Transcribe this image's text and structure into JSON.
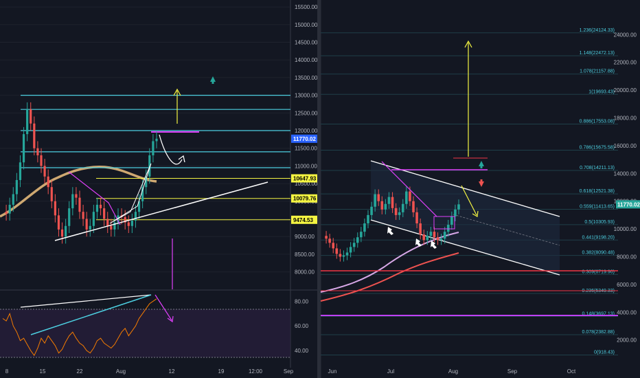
{
  "charts": [
    {
      "type": "line",
      "title": "",
      "x_ticks": [
        "8",
        "15",
        "22",
        "Aug",
        "12",
        "19",
        "12:00",
        "Sep"
      ],
      "y_ticks": [
        "15500.00",
        "15000.00",
        "14500.00",
        "14000.00",
        "13500.00",
        "13000.00",
        "12500.00",
        "12000.00",
        "11500.00",
        "11000.00",
        "10500.00",
        "10000.00",
        "9500.00",
        "9000.00",
        "8500.00",
        "8000.00"
      ],
      "ylim": [
        7700,
        15600
      ],
      "price_tag": "11770.02",
      "level_tags": [
        "10647.93",
        "10079.76",
        "9474.53"
      ],
      "level_values": [
        10647.93,
        10079.76,
        9474.53
      ],
      "cyan_levels": [
        13000,
        12600,
        12000,
        11400,
        10950
      ],
      "price_series": [
        9700,
        9650,
        9900,
        10200,
        10600,
        11100,
        11900,
        12600,
        12200,
        11500,
        11300,
        11000,
        10700,
        10400,
        10000,
        9600,
        9200,
        9000,
        9300,
        9800,
        10200,
        10100,
        9700,
        9500,
        9200,
        9300,
        9700,
        9900,
        9800,
        9500,
        9300,
        9200,
        9400,
        9600,
        9550,
        9400,
        9300,
        9450,
        9700,
        10000,
        10400,
        10700,
        11300,
        11700,
        11770
      ]
    },
    {
      "type": "line",
      "title": "",
      "y_ticks": [
        "80.00",
        "60.00",
        "40.00"
      ],
      "ylim": [
        30,
        88
      ],
      "rsi_series": [
        66,
        64,
        70,
        60,
        55,
        48,
        50,
        45,
        40,
        36,
        42,
        50,
        46,
        52,
        48,
        44,
        38,
        41,
        47,
        52,
        55,
        50,
        46,
        44,
        40,
        38,
        42,
        48,
        50,
        46,
        44,
        42,
        45,
        50,
        55,
        58,
        52,
        56,
        60,
        66,
        70,
        74,
        78,
        80,
        82
      ]
    },
    {
      "type": "line",
      "title": "",
      "x_ticks": [
        "Jun",
        "Jul",
        "Aug",
        "Sep",
        "Oct"
      ],
      "y_ticks": [
        "24000.00",
        "22000.00",
        "20000.00",
        "18000.00",
        "16000.00",
        "14000.00",
        "12000.00",
        "10000.00",
        "8000.00",
        "6000.00",
        "4000.00",
        "2000.00"
      ],
      "ylim": [
        500,
        25500
      ],
      "price_tag": "11770.02",
      "fib_labels": [
        "1.236(24124.33)",
        "1.148(22472.13)",
        "1.078(21157.88)",
        "1(19693.43)",
        "0.886(17553.08)",
        "0.786(15675.58)",
        "0.708(14211.13)",
        "0.618(12521.38)",
        "0.559(11413.65)",
        "0.5(10305.93)",
        "0.441(9198.20)",
        "0.382(8090.48)",
        "0.309(6719.90)",
        "0.236(5349.33)",
        "0.148(3697.13)",
        "0.078(2382.88)",
        "0(918.43)"
      ],
      "fib_values": [
        24124.33,
        22472.13,
        21157.88,
        19693.43,
        17553.08,
        15675.58,
        14211.13,
        12521.38,
        11413.65,
        10305.93,
        9198.2,
        8090.48,
        6719.9,
        5349.33,
        3697.13,
        2382.88,
        918.43
      ],
      "price_series": [
        9500,
        9300,
        9000,
        8600,
        8200,
        8000,
        8100,
        8300,
        8700,
        9000,
        9400,
        9800,
        10400,
        11000,
        11600,
        12500,
        12000,
        11400,
        11800,
        12300,
        11500,
        11000,
        11200,
        11800,
        12700,
        12000,
        11200,
        10400,
        9600,
        9200,
        9500,
        9800,
        9400,
        9200,
        9300,
        9800,
        10300,
        10900,
        11400,
        11770
      ]
    }
  ]
}
